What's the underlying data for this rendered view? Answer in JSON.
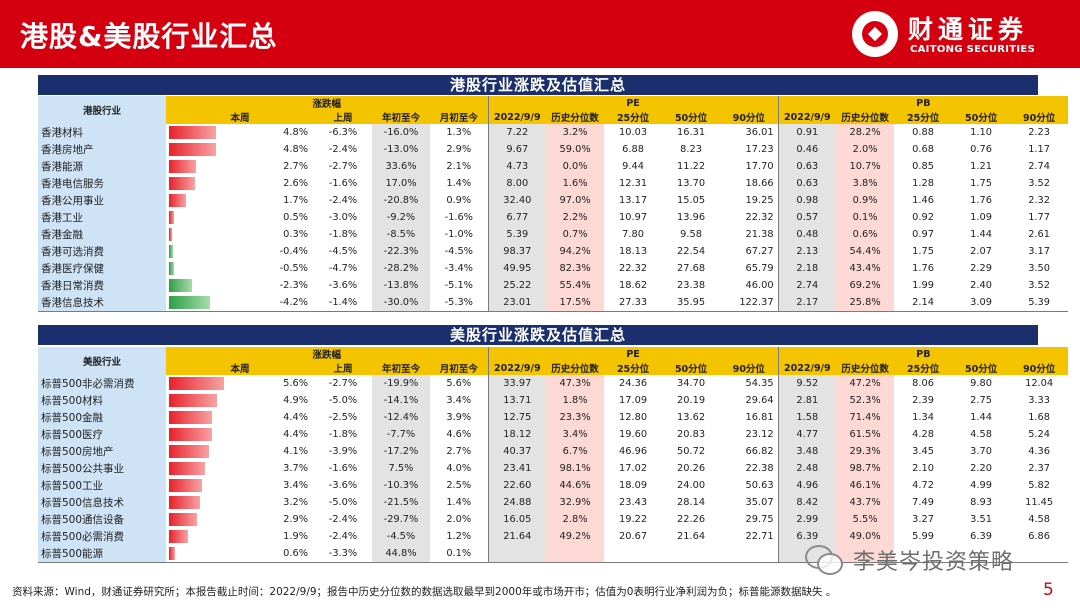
{
  "page": {
    "title": "港股&美股行业汇总",
    "logo_cn": "财通证券",
    "logo_en": "CAITONG SECURITIES",
    "footnote": "资料来源：Wind，财通证券研究所；本报告截止时间：2022/9/9；报告中历史分位数的数据选取最早到2000年或市场开市；估值为0表明行业净利润为负；标普能源数据缺失 。",
    "page_number": "5",
    "watermark": "李美岑投资策略"
  },
  "headers": {
    "zhangdie": "涨跌幅",
    "pe": "PE",
    "pb": "PB",
    "week": "本周",
    "prev_week": "上周",
    "ytd": "年初至今",
    "mtd": "月初至今",
    "date": "2022/9/9",
    "hist_pct": "历史分位数",
    "p25": "25分位",
    "p50": "50分位",
    "p90": "90分位"
  },
  "hk": {
    "title": "港股行业涨跌及估值汇总",
    "sector_label": "港股行业",
    "rows": [
      {
        "name": "香港材料",
        "week": "4.8%",
        "week_v": 4.8,
        "prev": "-6.3%",
        "ytd": "-16.0%",
        "mtd": "1.3%",
        "pe": "7.22",
        "pe_pct": "3.2%",
        "pe25": "10.03",
        "pe50": "16.31",
        "pe90": "36.01",
        "pb": "0.91",
        "pb_pct": "28.2%",
        "pb25": "0.88",
        "pb50": "1.10",
        "pb90": "2.23"
      },
      {
        "name": "香港房地产",
        "week": "4.8%",
        "week_v": 4.8,
        "prev": "-2.4%",
        "ytd": "-13.0%",
        "mtd": "2.9%",
        "pe": "9.67",
        "pe_pct": "59.0%",
        "pe25": "6.88",
        "pe50": "8.23",
        "pe90": "17.23",
        "pb": "0.46",
        "pb_pct": "2.0%",
        "pb25": "0.68",
        "pb50": "0.76",
        "pb90": "1.17"
      },
      {
        "name": "香港能源",
        "week": "2.7%",
        "week_v": 2.7,
        "prev": "-2.7%",
        "ytd": "33.6%",
        "mtd": "2.1%",
        "pe": "4.73",
        "pe_pct": "0.0%",
        "pe25": "9.44",
        "pe50": "11.22",
        "pe90": "17.70",
        "pb": "0.63",
        "pb_pct": "10.7%",
        "pb25": "0.85",
        "pb50": "1.21",
        "pb90": "2.74"
      },
      {
        "name": "香港电信服务",
        "week": "2.6%",
        "week_v": 2.6,
        "prev": "-1.6%",
        "ytd": "17.0%",
        "mtd": "1.4%",
        "pe": "8.00",
        "pe_pct": "1.6%",
        "pe25": "12.31",
        "pe50": "13.70",
        "pe90": "18.66",
        "pb": "0.63",
        "pb_pct": "3.8%",
        "pb25": "1.28",
        "pb50": "1.75",
        "pb90": "3.52"
      },
      {
        "name": "香港公用事业",
        "week": "1.7%",
        "week_v": 1.7,
        "prev": "-2.4%",
        "ytd": "-20.8%",
        "mtd": "0.9%",
        "pe": "32.40",
        "pe_pct": "97.0%",
        "pe25": "13.17",
        "pe50": "15.05",
        "pe90": "19.25",
        "pb": "0.98",
        "pb_pct": "0.9%",
        "pb25": "1.46",
        "pb50": "1.76",
        "pb90": "2.32"
      },
      {
        "name": "香港工业",
        "week": "0.5%",
        "week_v": 0.5,
        "prev": "-3.0%",
        "ytd": "-9.2%",
        "mtd": "-1.6%",
        "pe": "6.77",
        "pe_pct": "2.2%",
        "pe25": "10.97",
        "pe50": "13.96",
        "pe90": "22.32",
        "pb": "0.57",
        "pb_pct": "0.1%",
        "pb25": "0.92",
        "pb50": "1.09",
        "pb90": "1.77"
      },
      {
        "name": "香港金融",
        "week": "0.3%",
        "week_v": 0.3,
        "prev": "-1.8%",
        "ytd": "-8.5%",
        "mtd": "-1.0%",
        "pe": "5.39",
        "pe_pct": "0.7%",
        "pe25": "7.80",
        "pe50": "9.58",
        "pe90": "21.38",
        "pb": "0.48",
        "pb_pct": "0.6%",
        "pb25": "0.97",
        "pb50": "1.44",
        "pb90": "2.61"
      },
      {
        "name": "香港可选消费",
        "week": "-0.4%",
        "week_v": -0.4,
        "prev": "-4.5%",
        "ytd": "-22.3%",
        "mtd": "-4.5%",
        "pe": "98.37",
        "pe_pct": "94.2%",
        "pe25": "18.13",
        "pe50": "22.54",
        "pe90": "67.27",
        "pb": "2.13",
        "pb_pct": "54.4%",
        "pb25": "1.75",
        "pb50": "2.07",
        "pb90": "3.17"
      },
      {
        "name": "香港医疗保健",
        "week": "-0.5%",
        "week_v": -0.5,
        "prev": "-4.7%",
        "ytd": "-28.2%",
        "mtd": "-3.4%",
        "pe": "49.95",
        "pe_pct": "82.3%",
        "pe25": "22.32",
        "pe50": "27.68",
        "pe90": "65.79",
        "pb": "2.18",
        "pb_pct": "43.4%",
        "pb25": "1.76",
        "pb50": "2.29",
        "pb90": "3.50"
      },
      {
        "name": "香港日常消费",
        "week": "-2.3%",
        "week_v": -2.3,
        "prev": "-3.6%",
        "ytd": "-13.8%",
        "mtd": "-5.1%",
        "pe": "25.22",
        "pe_pct": "55.4%",
        "pe25": "18.62",
        "pe50": "23.38",
        "pe90": "46.00",
        "pb": "2.74",
        "pb_pct": "69.2%",
        "pb25": "1.99",
        "pb50": "2.40",
        "pb90": "3.52"
      },
      {
        "name": "香港信息技术",
        "week": "-4.2%",
        "week_v": -4.2,
        "prev": "-1.4%",
        "ytd": "-30.0%",
        "mtd": "-5.3%",
        "pe": "23.01",
        "pe_pct": "17.5%",
        "pe25": "27.33",
        "pe50": "35.95",
        "pe90": "122.37",
        "pb": "2.17",
        "pb_pct": "25.8%",
        "pb25": "2.14",
        "pb50": "3.09",
        "pb90": "5.39"
      }
    ]
  },
  "us": {
    "title": "美股行业涨跌及估值汇总",
    "sector_label": "美股行业",
    "rows": [
      {
        "name": "标普500非必需消费",
        "week": "5.6%",
        "week_v": 5.6,
        "prev": "-2.7%",
        "ytd": "-19.9%",
        "mtd": "5.6%",
        "pe": "33.97",
        "pe_pct": "47.3%",
        "pe25": "24.36",
        "pe50": "34.70",
        "pe90": "54.35",
        "pb": "9.52",
        "pb_pct": "47.2%",
        "pb25": "8.06",
        "pb50": "9.80",
        "pb90": "12.04"
      },
      {
        "name": "标普500材料",
        "week": "4.9%",
        "week_v": 4.9,
        "prev": "-5.0%",
        "ytd": "-14.1%",
        "mtd": "3.4%",
        "pe": "13.71",
        "pe_pct": "1.8%",
        "pe25": "17.09",
        "pe50": "20.19",
        "pe90": "29.64",
        "pb": "2.81",
        "pb_pct": "52.3%",
        "pb25": "2.39",
        "pb50": "2.75",
        "pb90": "3.33"
      },
      {
        "name": "标普500金融",
        "week": "4.4%",
        "week_v": 4.4,
        "prev": "-2.5%",
        "ytd": "-12.4%",
        "mtd": "3.9%",
        "pe": "12.75",
        "pe_pct": "23.3%",
        "pe25": "12.80",
        "pe50": "13.62",
        "pe90": "16.81",
        "pb": "1.58",
        "pb_pct": "71.4%",
        "pb25": "1.34",
        "pb50": "1.44",
        "pb90": "1.68"
      },
      {
        "name": "标普500医疗",
        "week": "4.4%",
        "week_v": 4.4,
        "prev": "-1.8%",
        "ytd": "-7.7%",
        "mtd": "4.6%",
        "pe": "18.12",
        "pe_pct": "3.4%",
        "pe25": "19.60",
        "pe50": "20.83",
        "pe90": "23.12",
        "pb": "4.77",
        "pb_pct": "61.5%",
        "pb25": "4.28",
        "pb50": "4.58",
        "pb90": "5.24"
      },
      {
        "name": "标普500房地产",
        "week": "4.1%",
        "week_v": 4.1,
        "prev": "-3.9%",
        "ytd": "-17.2%",
        "mtd": "2.7%",
        "pe": "40.37",
        "pe_pct": "6.7%",
        "pe25": "46.96",
        "pe50": "50.72",
        "pe90": "66.82",
        "pb": "3.48",
        "pb_pct": "29.3%",
        "pb25": "3.45",
        "pb50": "3.70",
        "pb90": "4.36"
      },
      {
        "name": "标普500公共事业",
        "week": "3.7%",
        "week_v": 3.7,
        "prev": "-1.6%",
        "ytd": "7.5%",
        "mtd": "4.0%",
        "pe": "23.41",
        "pe_pct": "98.1%",
        "pe25": "17.02",
        "pe50": "20.26",
        "pe90": "22.38",
        "pb": "2.48",
        "pb_pct": "98.7%",
        "pb25": "2.10",
        "pb50": "2.20",
        "pb90": "2.37"
      },
      {
        "name": "标普500工业",
        "week": "3.4%",
        "week_v": 3.4,
        "prev": "-3.6%",
        "ytd": "-10.3%",
        "mtd": "2.5%",
        "pe": "22.60",
        "pe_pct": "44.6%",
        "pe25": "18.09",
        "pe50": "24.00",
        "pe90": "50.63",
        "pb": "4.96",
        "pb_pct": "46.1%",
        "pb25": "4.72",
        "pb50": "4.99",
        "pb90": "5.82"
      },
      {
        "name": "标普500信息技术",
        "week": "3.2%",
        "week_v": 3.2,
        "prev": "-5.0%",
        "ytd": "-21.5%",
        "mtd": "1.4%",
        "pe": "24.88",
        "pe_pct": "32.9%",
        "pe25": "23.43",
        "pe50": "28.14",
        "pe90": "35.07",
        "pb": "8.42",
        "pb_pct": "43.7%",
        "pb25": "7.49",
        "pb50": "8.93",
        "pb90": "11.45"
      },
      {
        "name": "标普500通信设备",
        "week": "2.9%",
        "week_v": 2.9,
        "prev": "-2.4%",
        "ytd": "-29.7%",
        "mtd": "2.0%",
        "pe": "16.05",
        "pe_pct": "2.8%",
        "pe25": "19.22",
        "pe50": "22.26",
        "pe90": "29.75",
        "pb": "2.99",
        "pb_pct": "5.5%",
        "pb25": "3.27",
        "pb50": "3.51",
        "pb90": "4.58"
      },
      {
        "name": "标普500必需消费",
        "week": "1.9%",
        "week_v": 1.9,
        "prev": "-2.4%",
        "ytd": "-4.5%",
        "mtd": "1.2%",
        "pe": "21.64",
        "pe_pct": "49.2%",
        "pe25": "20.67",
        "pe50": "21.64",
        "pe90": "22.71",
        "pb": "6.39",
        "pb_pct": "49.0%",
        "pb25": "5.99",
        "pb50": "6.39",
        "pb90": "6.86"
      },
      {
        "name": "标普500能源",
        "week": "0.6%",
        "week_v": 0.6,
        "prev": "-3.3%",
        "ytd": "44.8%",
        "mtd": "0.1%",
        "pe": "",
        "pe_pct": "",
        "pe25": "",
        "pe50": "",
        "pe90": "",
        "pb": "",
        "pb_pct": "",
        "pb25": "",
        "pb50": "",
        "pb90": ""
      }
    ]
  },
  "colors": {
    "brand_red": "#d4000f",
    "navy_band": "#1b2f6e",
    "header_yellow": "#f5c400",
    "sector_blue": "#cfe3f6",
    "pct_pink": "#fcd9d4",
    "gray_cell": "#e3e3e3",
    "bar_positive": "#e8212c",
    "bar_negative": "#2e9e46"
  }
}
